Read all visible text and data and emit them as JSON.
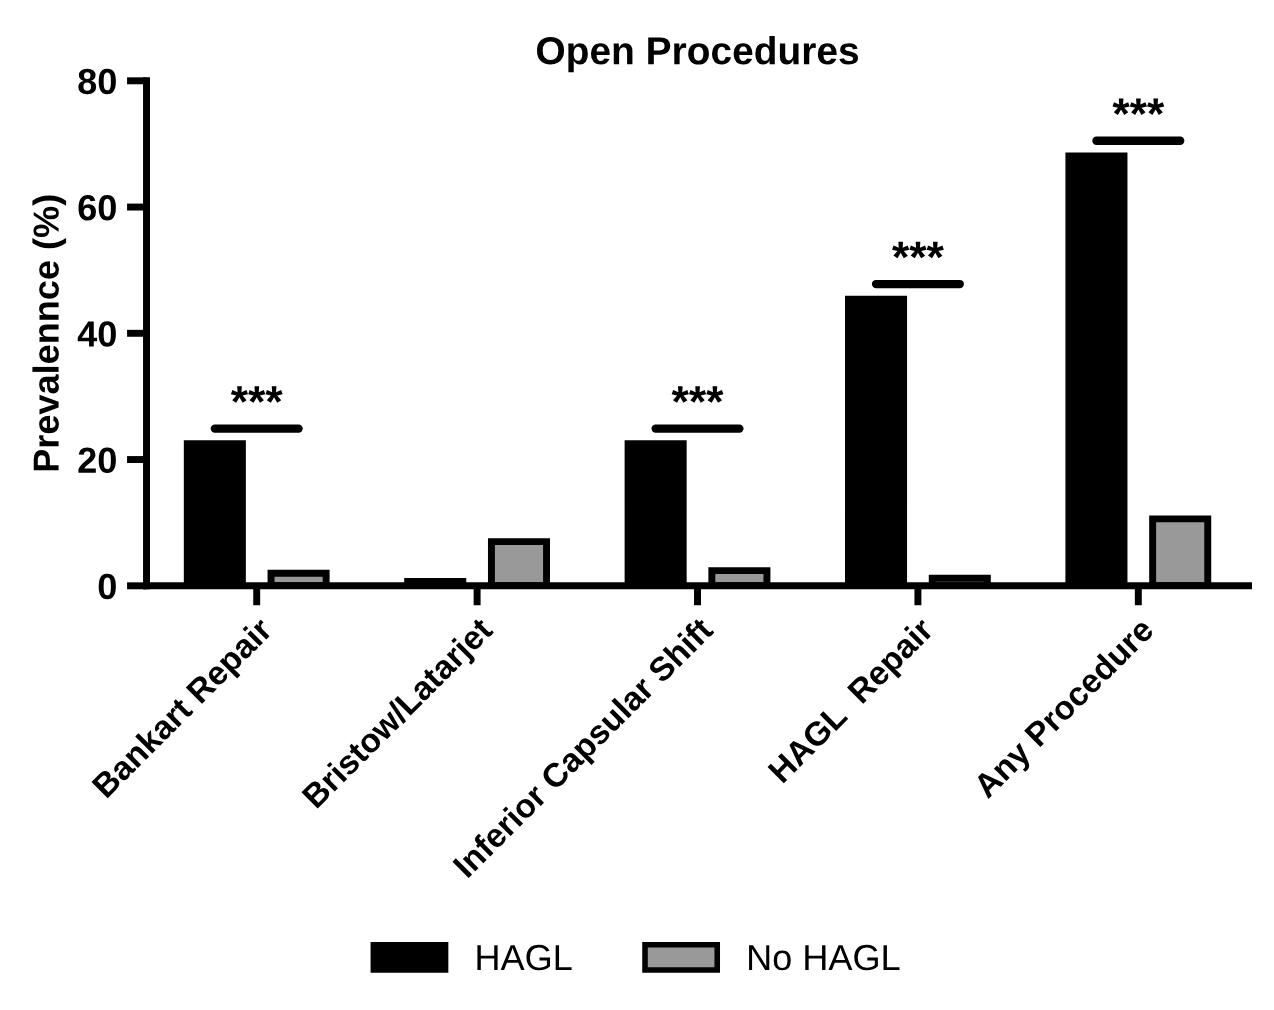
{
  "chart_data": {
    "type": "bar",
    "title": "Open Procedures",
    "ylabel": "Prevalennce (%)",
    "categories": [
      "Bankart Repair",
      "Bristow/Latarjet",
      "Inferior Capsular Shift",
      "HAGL  Repair",
      "Any Procedure"
    ],
    "series": [
      {
        "name": "HAGL",
        "color": "#000000",
        "values": [
          22.5,
          0.7,
          22.5,
          45.4,
          68.1
        ]
      },
      {
        "name": "No HAGL",
        "color": "#999999",
        "values": [
          2.0,
          7.0,
          2.4,
          1.2,
          10.6
        ]
      }
    ],
    "ylim": [
      0,
      80
    ],
    "yticks": [
      0,
      20,
      40,
      60,
      80
    ],
    "grid": false,
    "legend": "bottom",
    "annotations": [
      "***",
      "***",
      "***",
      "***"
    ]
  }
}
